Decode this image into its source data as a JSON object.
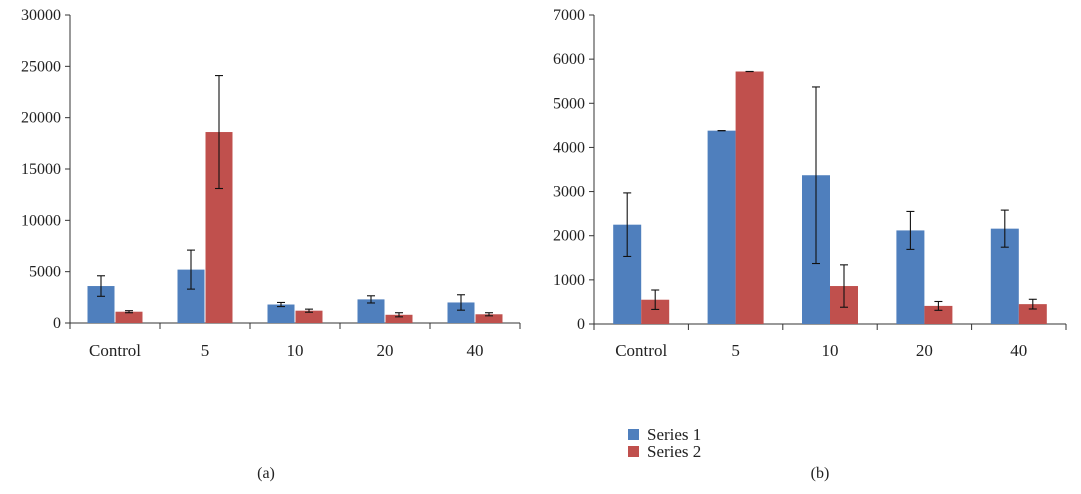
{
  "colors": {
    "series1": "#4f7fbd",
    "series2": "#c0504d",
    "axis": "#333333",
    "error": "#111111"
  },
  "legend": {
    "placement": "bottom-center",
    "items": [
      {
        "label": "Series 1",
        "color": "#4f7fbd"
      },
      {
        "label": "Series 2",
        "color": "#c0504d"
      }
    ]
  },
  "chart_data": [
    {
      "type": "bar",
      "panel_label": "(a)",
      "title": "",
      "xlabel": "",
      "ylabel": "",
      "categories": [
        "Control",
        "5",
        "10",
        "20",
        "40"
      ],
      "ylim": [
        0,
        30000
      ],
      "yticks": [
        0,
        5000,
        10000,
        15000,
        20000,
        25000,
        30000
      ],
      "grid": false,
      "series": [
        {
          "name": "Series 1",
          "values": [
            3600,
            5200,
            1800,
            2300,
            2000
          ],
          "errors": [
            1000,
            1900,
            200,
            350,
            750
          ]
        },
        {
          "name": "Series 2",
          "values": [
            1100,
            18600,
            1200,
            800,
            850
          ],
          "errors": [
            100,
            5500,
            150,
            200,
            150
          ]
        }
      ]
    },
    {
      "type": "bar",
      "panel_label": "(b)",
      "title": "",
      "xlabel": "",
      "ylabel": "",
      "categories": [
        "Control",
        "5",
        "10",
        "20",
        "40"
      ],
      "ylim": [
        0,
        7000
      ],
      "yticks": [
        0,
        1000,
        2000,
        3000,
        4000,
        5000,
        6000,
        7000
      ],
      "grid": false,
      "series": [
        {
          "name": "Series 1",
          "values": [
            2250,
            4380,
            3370,
            2120,
            2160
          ],
          "errors": [
            720,
            0,
            2000,
            430,
            420
          ]
        },
        {
          "name": "Series 2",
          "values": [
            550,
            5720,
            860,
            410,
            450
          ],
          "errors": [
            220,
            0,
            480,
            100,
            110
          ]
        }
      ]
    }
  ]
}
